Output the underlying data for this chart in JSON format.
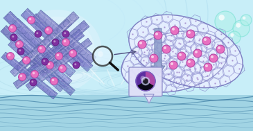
{
  "bg_color": "#c8eef8",
  "nanotube_colors": [
    "#7878c8",
    "#8888d0",
    "#7070bc",
    "#9090d8",
    "#8080cc"
  ],
  "nanotube_edge": "#5060a0",
  "particle_pink": "#e870c0",
  "particle_purple": "#8030a0",
  "particle_pink_edge": "#b040a0",
  "particle_purple_edge": "#5010700",
  "graphene_edge": "#8888cc",
  "graphene_node": "#9070c0",
  "graphene_fill": "#e8eeff",
  "bubble_fill": "#b0f0e8",
  "bubble_edge": "#70e0d0",
  "arrow_fill": "#8898c8",
  "arrow_edge": "#6878a8",
  "callout_bg": "#e0e0f8",
  "callout_edge": "#9090cc",
  "water_dark": "#80b8cc",
  "water_wave": "#5090a8",
  "ripple_color": "#a0d8e8",
  "sphere_glow": "#e0f0ff",
  "left_bundle_glow": "#d8f0ff"
}
